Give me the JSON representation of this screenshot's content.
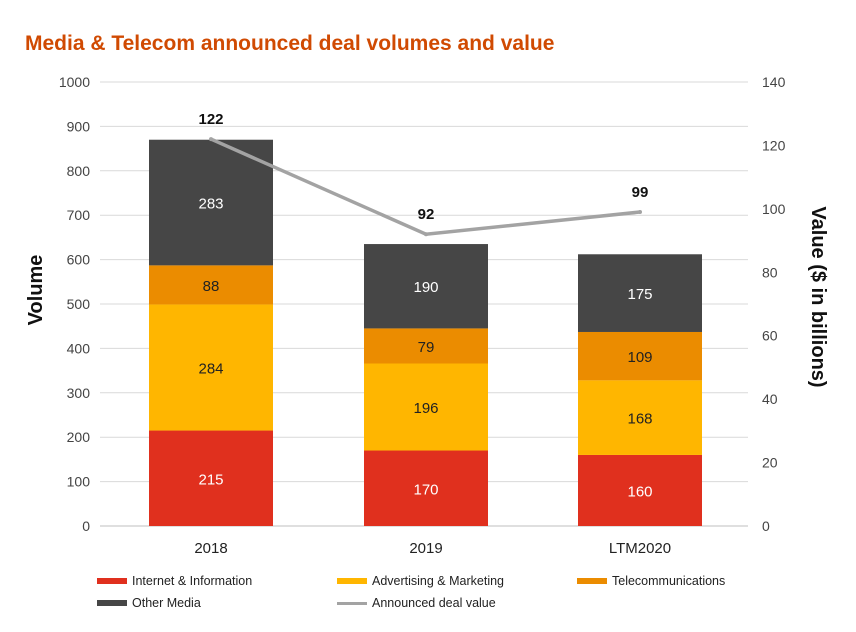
{
  "chart_data": {
    "type": "bar",
    "stacked": true,
    "title": "Media & Telecom announced deal volumes and value",
    "categories": [
      "2018",
      "2019",
      "LTM2020"
    ],
    "series": [
      {
        "name": "Internet & Information",
        "values": [
          215,
          170,
          160
        ],
        "color": "#e0301e"
      },
      {
        "name": "Advertising & Marketing",
        "values": [
          284,
          196,
          168
        ],
        "color": "#ffb600"
      },
      {
        "name": "Telecommunications",
        "values": [
          88,
          79,
          109
        ],
        "color": "#eb8c00"
      },
      {
        "name": "Other Media",
        "values": [
          283,
          190,
          175
        ],
        "color": "#464646"
      }
    ],
    "line_series": {
      "name": "Announced deal value",
      "values": [
        122,
        92,
        99
      ],
      "color": "#a3a3a3",
      "axis": "right"
    },
    "ylabel": "Volume",
    "ylim": [
      0,
      1000
    ],
    "yticks": [
      0,
      100,
      200,
      300,
      400,
      500,
      600,
      700,
      800,
      900,
      1000
    ],
    "y2label": "Value ($ in billions)",
    "y2lim": [
      0,
      140
    ],
    "y2ticks": [
      0,
      20,
      40,
      60,
      80,
      100,
      120,
      140
    ],
    "grid": true,
    "legend_position": "bottom",
    "label_colors": {
      "on_dark": "#ffffff",
      "on_light": "#222222"
    },
    "title_color": "#d04a02"
  }
}
